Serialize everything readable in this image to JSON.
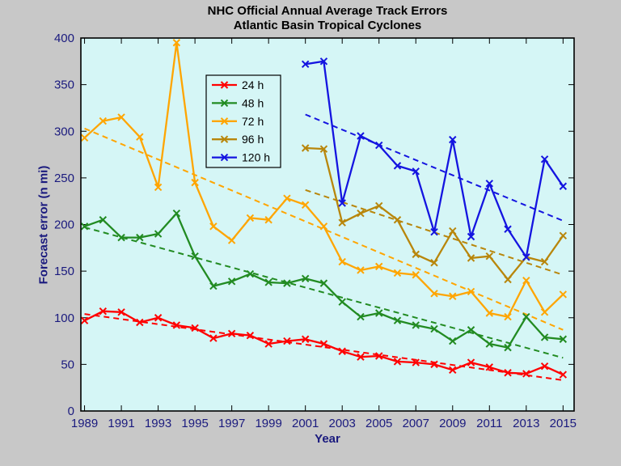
{
  "title": {
    "line1": "NHC Official Annual Average Track Errors",
    "line2": "Atlantic Basin Tropical Cyclones"
  },
  "chart_data": {
    "type": "line",
    "title": "NHC Official Annual Average Track Errors — Atlantic Basin Tropical Cyclones",
    "title_line1": "NHC Official Annual Average Track Errors",
    "title_line2": "Atlantic Basin Tropical Cyclones",
    "xlabel": "Year",
    "ylabel": "Forecast error (n mi)",
    "xlim": [
      1988.8,
      2015.6
    ],
    "ylim": [
      0,
      400
    ],
    "xticks": [
      1989,
      1991,
      1993,
      1995,
      1997,
      1999,
      2001,
      2003,
      2005,
      2007,
      2009,
      2011,
      2013,
      2015
    ],
    "yticks": [
      0,
      50,
      100,
      150,
      200,
      250,
      300,
      350,
      400
    ],
    "grid": false,
    "legend_position": "upper left inside",
    "figure_bg": "#c8c8c8",
    "plot_bg": "#d5f6f6",
    "axis_color": "#000000",
    "tick_color": "#1a1a7e",
    "marker": "x",
    "series": [
      {
        "name": "24 h",
        "color": "#FF0000",
        "x": [
          1989,
          1990,
          1991,
          1992,
          1993,
          1994,
          1995,
          1996,
          1997,
          1998,
          1999,
          2000,
          2001,
          2002,
          2003,
          2004,
          2005,
          2006,
          2007,
          2008,
          2009,
          2010,
          2011,
          2012,
          2013,
          2014,
          2015
        ],
        "y": [
          97,
          107,
          106,
          95,
          100,
          92,
          89,
          78,
          83,
          81,
          72,
          75,
          77,
          72,
          64,
          58,
          59,
          53,
          52,
          50,
          44,
          52,
          47,
          41,
          40,
          48,
          39
        ],
        "trend": {
          "x": [
            1989,
            2015
          ],
          "y": [
            104,
            33
          ]
        }
      },
      {
        "name": "48 h",
        "color": "#228B22",
        "x": [
          1989,
          1990,
          1991,
          1992,
          1993,
          1994,
          1995,
          1996,
          1997,
          1998,
          1999,
          2000,
          2001,
          2002,
          2003,
          2004,
          2005,
          2006,
          2007,
          2008,
          2009,
          2010,
          2011,
          2012,
          2013,
          2014,
          2015
        ],
        "y": [
          198,
          205,
          186,
          186,
          190,
          212,
          166,
          134,
          139,
          147,
          138,
          137,
          142,
          137,
          117,
          101,
          105,
          97,
          92,
          88,
          75,
          87,
          72,
          68,
          101,
          79,
          77
        ],
        "trend": {
          "x": [
            1989,
            2015
          ],
          "y": [
            197,
            57
          ]
        }
      },
      {
        "name": "72 h",
        "color": "#FFA500",
        "x": [
          1989,
          1990,
          1991,
          1992,
          1993,
          1994,
          1995,
          1996,
          1997,
          1998,
          1999,
          2000,
          2001,
          2002,
          2003,
          2004,
          2005,
          2006,
          2007,
          2008,
          2009,
          2010,
          2011,
          2012,
          2013,
          2014,
          2015
        ],
        "y": [
          293,
          311,
          315,
          294,
          240,
          395,
          245,
          198,
          183,
          207,
          205,
          228,
          221,
          198,
          160,
          151,
          155,
          148,
          146,
          126,
          123,
          128,
          105,
          101,
          140,
          106,
          125
        ],
        "trend": {
          "x": [
            1989,
            2015
          ],
          "y": [
            303,
            87
          ]
        }
      },
      {
        "name": "96 h",
        "color": "#B8860B",
        "x": [
          2001,
          2002,
          2003,
          2004,
          2005,
          2006,
          2007,
          2008,
          2009,
          2010,
          2011,
          2012,
          2013,
          2014,
          2015
        ],
        "y": [
          282,
          281,
          202,
          212,
          220,
          205,
          168,
          159,
          193,
          164,
          166,
          141,
          165,
          160,
          188
        ],
        "trend": {
          "x": [
            2001,
            2015
          ],
          "y": [
            237,
            146
          ]
        }
      },
      {
        "name": "120 h",
        "color": "#1414E0",
        "x": [
          2001,
          2002,
          2003,
          2004,
          2005,
          2006,
          2007,
          2008,
          2009,
          2010,
          2011,
          2012,
          2013,
          2014,
          2015
        ],
        "y": [
          372,
          375,
          223,
          295,
          285,
          263,
          257,
          192,
          291,
          187,
          244,
          195,
          165,
          270,
          241
        ],
        "trend": {
          "x": [
            2001,
            2015
          ],
          "y": [
            318,
            204
          ]
        }
      }
    ]
  }
}
